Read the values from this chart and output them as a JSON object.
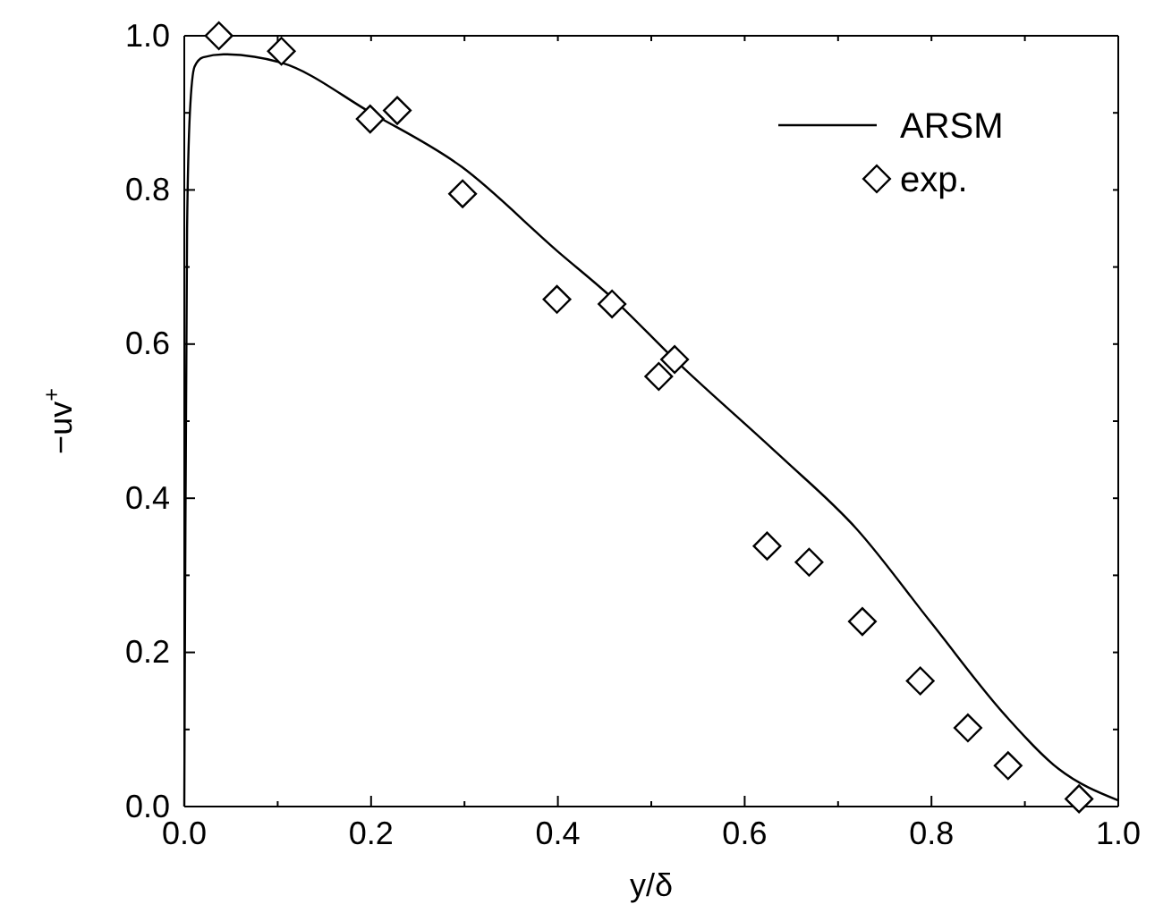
{
  "chart_data": {
    "type": "line",
    "xlabel": "y/δ",
    "ylabel": "−uv$^{+}$",
    "xlim": [
      0,
      1
    ],
    "ylim": [
      0,
      1
    ],
    "xticks": [
      {
        "value": 0,
        "label": "0.0"
      },
      {
        "value": 0.1,
        "label": null
      },
      {
        "value": 0.2,
        "label": "0.2"
      },
      {
        "value": 0.3,
        "label": null
      },
      {
        "value": 0.4,
        "label": "0.4"
      },
      {
        "value": 0.5,
        "label": null
      },
      {
        "value": 0.6,
        "label": "0.6"
      },
      {
        "value": 0.7,
        "label": null
      },
      {
        "value": 0.8,
        "label": "0.8"
      },
      {
        "value": 0.9,
        "label": null
      },
      {
        "value": 1,
        "label": "1.0"
      }
    ],
    "yticks": [
      {
        "value": 0,
        "label": "0.0"
      },
      {
        "value": 0.1,
        "label": null
      },
      {
        "value": 0.2,
        "label": "0.2"
      },
      {
        "value": 0.3,
        "label": null
      },
      {
        "value": 0.4,
        "label": "0.4"
      },
      {
        "value": 0.5,
        "label": null
      },
      {
        "value": 0.6,
        "label": "0.6"
      },
      {
        "value": 0.7,
        "label": null
      },
      {
        "value": 0.8,
        "label": "0.8"
      },
      {
        "value": 0.9,
        "label": null
      },
      {
        "value": 1,
        "label": "1.0"
      }
    ],
    "legend": "top right",
    "grid": false,
    "series": [
      {
        "name": "ARSM",
        "color": "#000000",
        "x": [
          0,
          0.001,
          0.003,
          0.006,
          0.011,
          0.02,
          0.042,
          0.104,
          0.2,
          0.297,
          0.4,
          0.458,
          0.525,
          0.637,
          0.72,
          0.8,
          0.88,
          0.936,
          1.0
        ],
        "values": [
          0,
          0.3,
          0.75,
          0.9,
          0.96,
          0.972,
          0.976,
          0.965,
          0.9,
          0.83,
          0.72,
          0.66,
          0.58,
          0.456,
          0.36,
          0.238,
          0.117,
          0.049,
          0.008
        ]
      },
      {
        "name": "exp.",
        "type": "scatter",
        "marker": "diamond",
        "color": "#000000",
        "x": [
          0.037,
          0.104,
          0.199,
          0.228,
          0.298,
          0.399,
          0.458,
          0.508,
          0.525,
          0.624,
          0.669,
          0.726,
          0.788,
          0.839,
          0.882,
          0.958
        ],
        "values": [
          1.0,
          0.98,
          0.892,
          0.903,
          0.795,
          0.658,
          0.652,
          0.558,
          0.58,
          0.338,
          0.317,
          0.24,
          0.163,
          0.102,
          0.053,
          0.01
        ]
      }
    ]
  }
}
